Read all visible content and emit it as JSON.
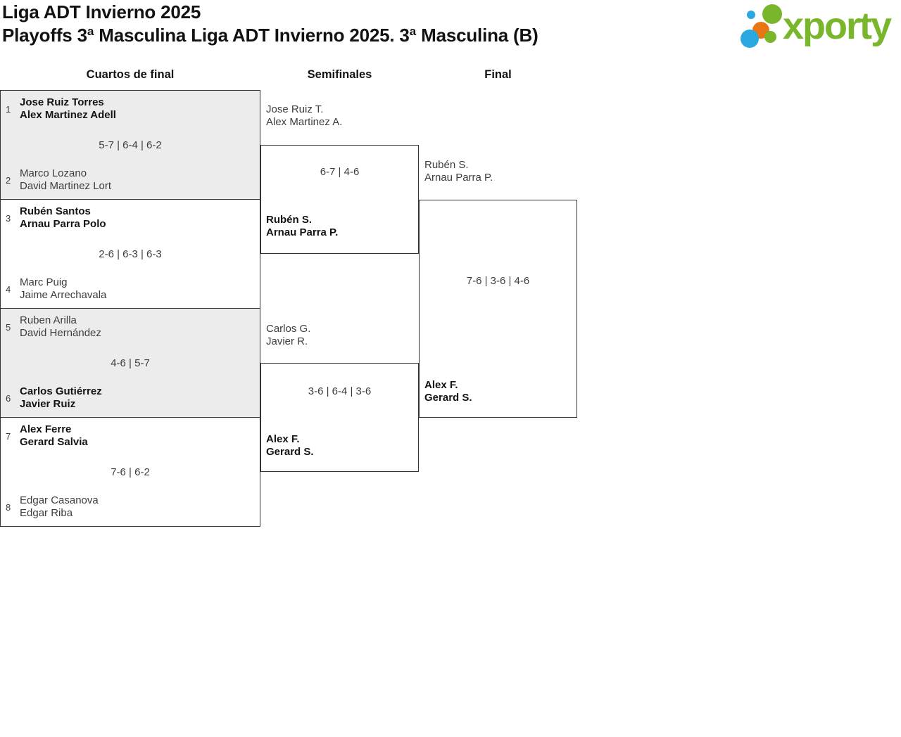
{
  "header": {
    "title": "Liga ADT Invierno 2025",
    "subtitle": "Playoffs 3ª Masculina Liga ADT Invierno 2025. 3ª Masculina (B)"
  },
  "logo": {
    "text": "xporty",
    "colors": {
      "green": "#7ab62c",
      "blue": "#29a9e0",
      "orange": "#e87613"
    }
  },
  "rounds": [
    {
      "label": "Cuartos de final"
    },
    {
      "label": "Semifinales"
    },
    {
      "label": "Final"
    }
  ],
  "colors": {
    "border": "#333333",
    "match_alt_background": "#ececec",
    "winner_text": "#141414",
    "regular_text": "#3d3d3d"
  },
  "quarterfinals": [
    {
      "seed_top": "1",
      "team_top": {
        "line1": "Jose Ruiz Torres",
        "line2": "Alex Martinez Adell",
        "winner": true
      },
      "score": "5-7 | 6-4 | 6-2",
      "seed_bottom": "2",
      "team_bottom": {
        "line1": "Marco Lozano",
        "line2": "David Martinez Lort",
        "winner": false
      }
    },
    {
      "seed_top": "3",
      "team_top": {
        "line1": "Rubén Santos",
        "line2": "Arnau Parra Polo",
        "winner": true
      },
      "score": "2-6 | 6-3 | 6-3",
      "seed_bottom": "4",
      "team_bottom": {
        "line1": "Marc Puig",
        "line2": "Jaime Arrechavala",
        "winner": false
      }
    },
    {
      "seed_top": "5",
      "team_top": {
        "line1": "Ruben Arilla",
        "line2": "David Hernández",
        "winner": false
      },
      "score": "4-6 | 5-7",
      "seed_bottom": "6",
      "team_bottom": {
        "line1": "Carlos Gutiérrez",
        "line2": "Javier Ruiz",
        "winner": true
      }
    },
    {
      "seed_top": "7",
      "team_top": {
        "line1": "Alex Ferre",
        "line2": "Gerard Salvia",
        "winner": true
      },
      "score": "7-6 | 6-2",
      "seed_bottom": "8",
      "team_bottom": {
        "line1": "Edgar Casanova",
        "line2": "Edgar Riba",
        "winner": false
      }
    }
  ],
  "semifinals": [
    {
      "team_top": {
        "line1": "Jose Ruiz T.",
        "line2": "Alex Martinez A.",
        "winner": false
      },
      "score": "6-7 | 4-6",
      "team_bottom": {
        "line1": "Rubén S.",
        "line2": "Arnau Parra P.",
        "winner": true
      }
    },
    {
      "team_top": {
        "line1": "Carlos G.",
        "line2": "Javier R.",
        "winner": false
      },
      "score": "3-6 | 6-4 | 3-6",
      "team_bottom": {
        "line1": "Alex F.",
        "line2": "Gerard S.",
        "winner": true
      }
    }
  ],
  "final": {
    "team_top": {
      "line1": "Rubén S.",
      "line2": "Arnau Parra P.",
      "winner": false
    },
    "score": "7-6 | 3-6 | 4-6",
    "team_bottom": {
      "line1": "Alex F.",
      "line2": "Gerard S.",
      "winner": true
    }
  }
}
